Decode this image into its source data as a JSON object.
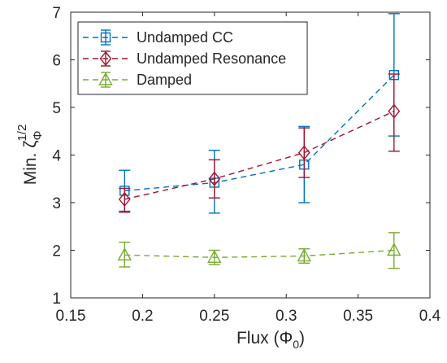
{
  "chart_data": {
    "type": "line",
    "xlabel_main": "Flux (Φ",
    "xlabel_sub": "0",
    "xlabel_close": ")",
    "ylabel_main": "Min. ζ",
    "ylabel_sub": "Φ",
    "ylabel_sup": "1/2",
    "xlim": [
      0.15,
      0.4
    ],
    "ylim": [
      1,
      7
    ],
    "xticks": [
      0.15,
      0.2,
      0.25,
      0.3,
      0.35,
      0.4
    ],
    "xtick_labels": [
      "0.15",
      "0.2",
      "0.25",
      "0.3",
      "0.35",
      "0.4"
    ],
    "yticks": [
      1,
      2,
      3,
      4,
      5,
      6,
      7
    ],
    "ytick_labels": [
      "1",
      "2",
      "3",
      "4",
      "5",
      "6",
      "7"
    ],
    "grid": false,
    "legend_position": "top-left",
    "x": [
      0.1875,
      0.25,
      0.3125,
      0.375
    ],
    "series": [
      {
        "name": "Undamped CC",
        "color": "#0072BD",
        "marker": "square",
        "values": [
          3.25,
          3.42,
          3.8,
          5.68
        ],
        "err_low": [
          2.82,
          2.78,
          3.0,
          4.4
        ],
        "err_high": [
          3.68,
          4.1,
          4.6,
          6.97
        ]
      },
      {
        "name": "Undamped Resonance",
        "color": "#A2142F",
        "marker": "diamond",
        "values": [
          3.07,
          3.5,
          4.05,
          4.92
        ],
        "err_low": [
          2.8,
          3.1,
          3.53,
          4.08
        ],
        "err_high": [
          3.3,
          3.9,
          4.57,
          5.7
        ]
      },
      {
        "name": "Damped",
        "color": "#77AC30",
        "marker": "triangle",
        "values": [
          1.9,
          1.85,
          1.88,
          2.0
        ],
        "err_low": [
          1.65,
          1.7,
          1.73,
          1.62
        ],
        "err_high": [
          2.17,
          2.0,
          2.03,
          2.37
        ]
      }
    ]
  }
}
